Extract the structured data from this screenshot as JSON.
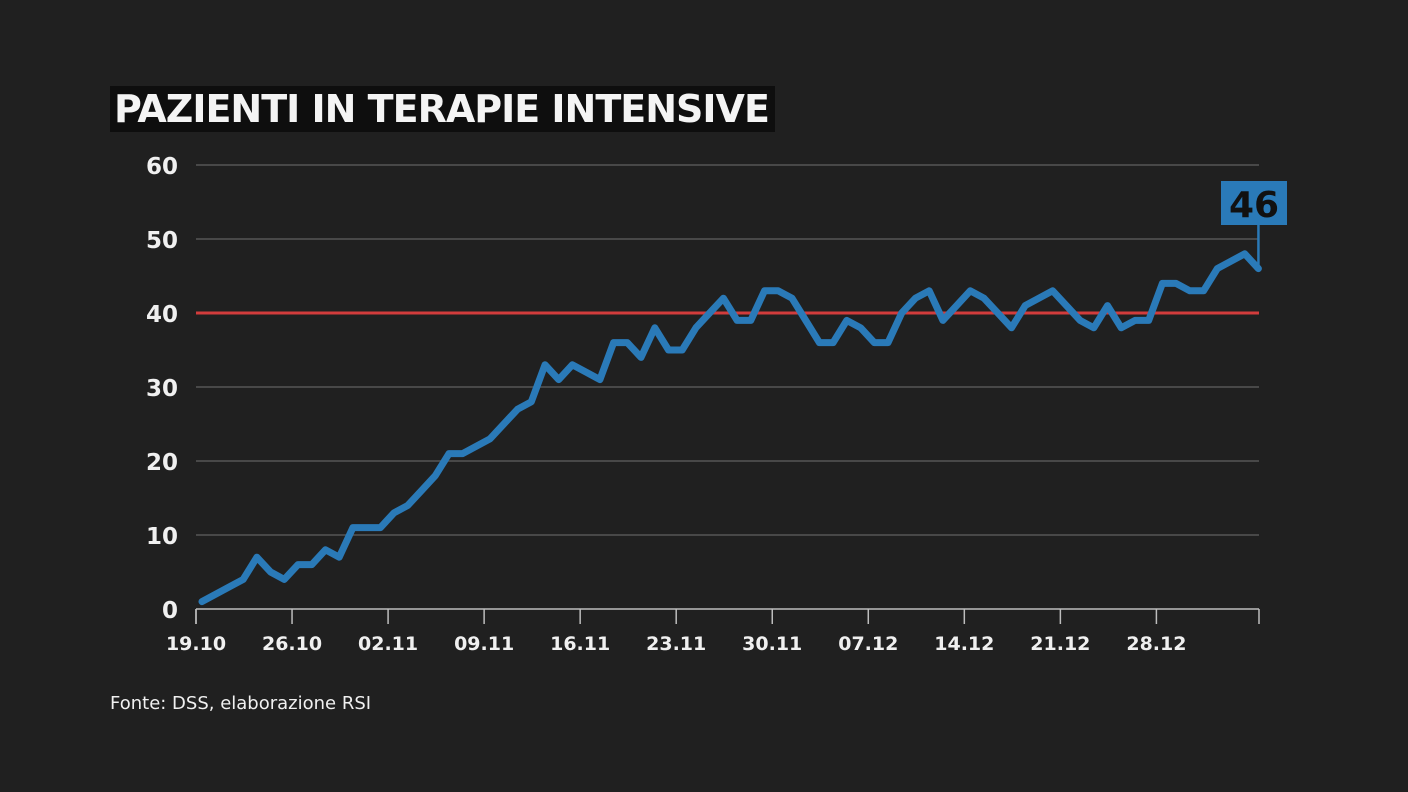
{
  "chart_data": {
    "type": "line",
    "title": "PAZIENTI IN TERAPIE INTENSIVE",
    "xlabel": "",
    "ylabel": "",
    "ylim": [
      0,
      60
    ],
    "yticks": [
      0,
      10,
      20,
      30,
      40,
      50,
      60
    ],
    "grid": true,
    "x_tick_labels": [
      "19.10",
      "26.10",
      "02.11",
      "09.11",
      "16.11",
      "23.11",
      "30.11",
      "07.12",
      "14.12",
      "21.12",
      "28.12"
    ],
    "x_start": "19.10",
    "x": [
      "19.10",
      "20.10",
      "21.10",
      "22.10",
      "23.10",
      "24.10",
      "25.10",
      "26.10",
      "27.10",
      "28.10",
      "29.10",
      "30.10",
      "31.10",
      "01.11",
      "02.11",
      "03.11",
      "04.11",
      "05.11",
      "06.11",
      "07.11",
      "08.11",
      "09.11",
      "10.11",
      "11.11",
      "12.11",
      "13.11",
      "14.11",
      "15.11",
      "16.11",
      "17.11",
      "18.11",
      "19.11",
      "20.11",
      "21.11",
      "22.11",
      "23.11",
      "24.11",
      "25.11",
      "26.11",
      "27.11",
      "28.11",
      "29.11",
      "30.11",
      "01.12",
      "02.12",
      "03.12",
      "04.12",
      "05.12",
      "06.12",
      "07.12",
      "08.12",
      "09.12",
      "10.12",
      "11.12",
      "12.12",
      "13.12",
      "14.12",
      "15.12",
      "16.12",
      "17.12",
      "18.12",
      "19.12",
      "20.12",
      "21.12",
      "22.12",
      "23.12",
      "24.12",
      "25.12",
      "26.12",
      "27.12",
      "28.12",
      "29.12",
      "30.12",
      "31.12",
      "01.01",
      "02.01",
      "03.01",
      "04.01"
    ],
    "series": [
      {
        "color": "#2a7ab8",
        "values": [
          1,
          2,
          3,
          4,
          7,
          5,
          4,
          6,
          6,
          8,
          7,
          11,
          11,
          11,
          13,
          14,
          16,
          18,
          21,
          21,
          22,
          23,
          25,
          27,
          28,
          33,
          31,
          33,
          32,
          31,
          36,
          36,
          34,
          38,
          35,
          35,
          38,
          40,
          42,
          39,
          39,
          43,
          43,
          42,
          39,
          36,
          36,
          39,
          38,
          36,
          36,
          40,
          42,
          43,
          39,
          41,
          43,
          42,
          40,
          38,
          41,
          42,
          43,
          41,
          39,
          38,
          41,
          38,
          39,
          39,
          44,
          44,
          43,
          43,
          46,
          47,
          48,
          46
        ]
      }
    ],
    "reference_line": {
      "value": 40,
      "color": "#d23c3c"
    },
    "last_value_label": "46",
    "label_color": "#2a7ab8"
  },
  "source": "Fonte: DSS, elaborazione RSI"
}
